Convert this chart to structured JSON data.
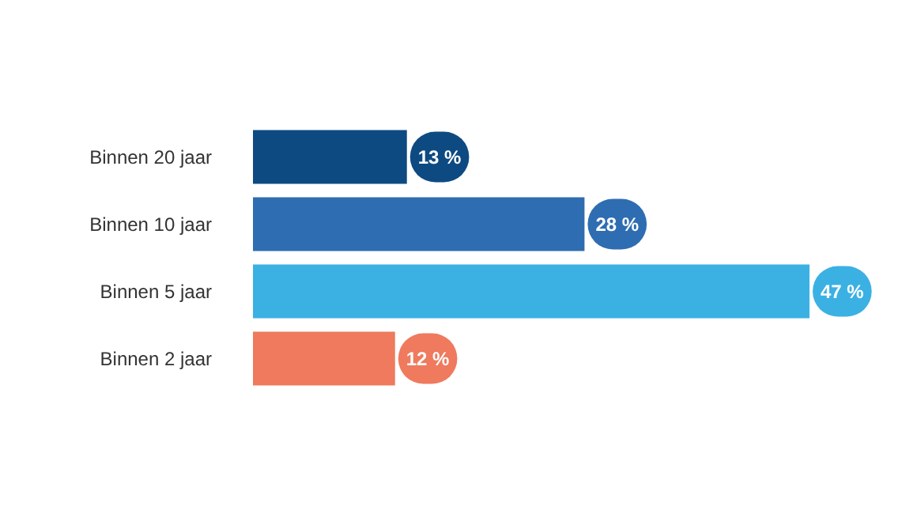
{
  "chart_data": {
    "type": "bar",
    "orientation": "horizontal",
    "categories": [
      "Binnen 20 jaar",
      "Binnen 10 jaar",
      "Binnen 5 jaar",
      "Binnen 2 jaar"
    ],
    "values": [
      13,
      28,
      47,
      12
    ],
    "colors": [
      "#0e4a82",
      "#2e6db1",
      "#3bb1e3",
      "#ef7a5d"
    ],
    "value_labels": [
      "13 %",
      "28 %",
      "47 %",
      "12 %"
    ]
  }
}
